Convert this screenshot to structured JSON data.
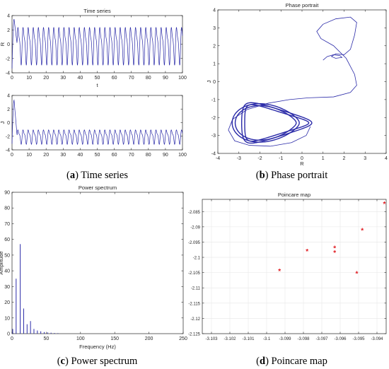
{
  "colors": {
    "line": "#2a2aa8",
    "marker": "#e0191f",
    "axis": "#262626",
    "text": "#262626"
  },
  "captions": {
    "a": {
      "letter": "a",
      "text": "Time series"
    },
    "b": {
      "letter": "b",
      "text": "Phase portrait"
    },
    "c": {
      "letter": "c",
      "text": "Power spectrum"
    },
    "d": {
      "letter": "d",
      "text": "Poincare map"
    }
  },
  "chart_data": [
    {
      "id": "timeseries_R",
      "type": "line",
      "title": "Time series",
      "xlabel": "t",
      "ylabel": "R",
      "xlim": [
        0,
        100
      ],
      "ylim": [
        -4,
        4
      ],
      "xticks": [
        0,
        10,
        20,
        30,
        40,
        50,
        60,
        70,
        80,
        90,
        100
      ],
      "yticks": [
        -4,
        -2,
        0,
        2,
        4
      ],
      "series": [
        {
          "signal": {
            "period": 3.0,
            "center": 0.0,
            "amp1": 2.3,
            "amp2": 0.8,
            "peak": 3.5,
            "trough": -3.4
          }
        }
      ]
    },
    {
      "id": "timeseries_J",
      "type": "line",
      "title": "",
      "xlabel": "",
      "ylabel": "J",
      "xlim": [
        0,
        100
      ],
      "ylim": [
        -4,
        4
      ],
      "xticks": [
        0,
        10,
        20,
        30,
        40,
        50,
        60,
        70,
        80,
        90,
        100
      ],
      "yticks": [
        -4,
        -2,
        0,
        2,
        4
      ],
      "series": [
        {
          "signal": {
            "period": 3.0,
            "center": -2.0,
            "amp1": 0.9,
            "amp2": 0.35,
            "peak": 3.3,
            "trough": -3.1
          }
        }
      ]
    },
    {
      "id": "phase_portrait",
      "type": "line",
      "title": "Phase portrait",
      "xlabel": "R",
      "ylabel": "J",
      "xlim": [
        -4,
        4
      ],
      "ylim": [
        -4,
        4
      ],
      "xticks": [
        -4,
        -3,
        -2,
        -1,
        0,
        1,
        2,
        3,
        4
      ],
      "yticks": [
        -4,
        -3,
        -2,
        -1,
        0,
        1,
        2,
        3,
        4
      ],
      "series": [
        {
          "name": "transient",
          "points": [
            [
              1.0,
              1.2
            ],
            [
              1.2,
              1.4
            ],
            [
              1.5,
              1.5
            ],
            [
              1.8,
              1.45
            ],
            [
              1.9,
              1.35
            ],
            [
              1.6,
              1.3
            ],
            [
              1.4,
              1.4
            ],
            [
              1.6,
              1.55
            ],
            [
              2.0,
              1.5
            ],
            [
              2.3,
              1.8
            ],
            [
              2.5,
              2.6
            ],
            [
              2.6,
              3.3
            ],
            [
              2.3,
              3.6
            ],
            [
              1.6,
              3.5
            ],
            [
              1.0,
              3.2
            ],
            [
              0.7,
              2.8
            ],
            [
              0.9,
              2.4
            ],
            [
              1.5,
              2.0
            ],
            [
              2.1,
              1.3
            ],
            [
              2.5,
              0.4
            ],
            [
              2.6,
              -0.2
            ],
            [
              2.3,
              -0.6
            ],
            [
              1.5,
              -0.85
            ],
            [
              0.3,
              -0.9
            ],
            [
              -0.6,
              -1.0
            ],
            [
              -1.6,
              -1.2
            ],
            [
              -2.6,
              -1.55
            ],
            [
              -3.3,
              -2.1
            ],
            [
              -3.5,
              -2.7
            ],
            [
              -3.2,
              -3.3
            ],
            [
              -2.5,
              -3.55
            ],
            [
              -1.5,
              -3.6
            ],
            [
              -0.5,
              -3.4
            ],
            [
              0.2,
              -3.0
            ],
            [
              0.4,
              -2.5
            ]
          ]
        },
        {
          "name": "attractor",
          "loop": {
            "cx": -1.55,
            "cy": -2.3,
            "rx": 1.45,
            "ry": 0.85
          }
        }
      ]
    },
    {
      "id": "power_spectrum",
      "type": "bar",
      "title": "Power spectrum",
      "xlabel": "Frequency (Hz)",
      "ylabel": "Amplitude",
      "xlim": [
        0,
        250
      ],
      "ylim": [
        0,
        90
      ],
      "xticks": [
        0,
        50,
        100,
        150,
        200,
        250
      ],
      "yticks": [
        0,
        10,
        20,
        30,
        40,
        50,
        60,
        70,
        80,
        90
      ],
      "x": [
        1,
        6,
        12,
        17,
        22,
        27,
        32,
        37,
        42,
        47,
        52,
        57,
        62,
        67
      ],
      "values": [
        3,
        35,
        57,
        16,
        6,
        8,
        3,
        2,
        1.5,
        1,
        0.8,
        0.6,
        0.4,
        0.3
      ]
    },
    {
      "id": "poincare_map",
      "type": "scatter",
      "title": "Poincare map",
      "xlabel": "",
      "ylabel": "",
      "xlim": [
        -3.1035,
        -3.0935
      ],
      "ylim": [
        -2.125,
        -2.081
      ],
      "xticks": [
        -3.103,
        -3.102,
        -3.101,
        -3.1,
        -3.099,
        -3.098,
        -3.097,
        -3.096,
        -3.095,
        -3.094
      ],
      "xticklabels": [
        "-3.103",
        "-3.102",
        "-3.101",
        "-3.1",
        "-3.099",
        "-3.098",
        "-3.097",
        "-3.096",
        "-3.095",
        "-3.094"
      ],
      "yticks": [
        -2.125,
        -2.12,
        -2.115,
        -2.11,
        -2.105,
        -2.1,
        -2.095,
        -2.09,
        -2.085
      ],
      "yticklabels": [
        "-2.125",
        "-2.12",
        "-2.115",
        "-2.11",
        "-2.105",
        "-2.1",
        "-2.095",
        "-2.09",
        "-2.085"
      ],
      "points": [
        [
          -3.0936,
          -2.0825
        ],
        [
          -3.0948,
          -2.0912
        ],
        [
          -3.0963,
          -2.097
        ],
        [
          -3.0963,
          -2.0985
        ],
        [
          -3.0978,
          -2.098
        ],
        [
          -3.0993,
          -2.1045
        ],
        [
          -3.0951,
          -2.1053
        ]
      ]
    }
  ]
}
